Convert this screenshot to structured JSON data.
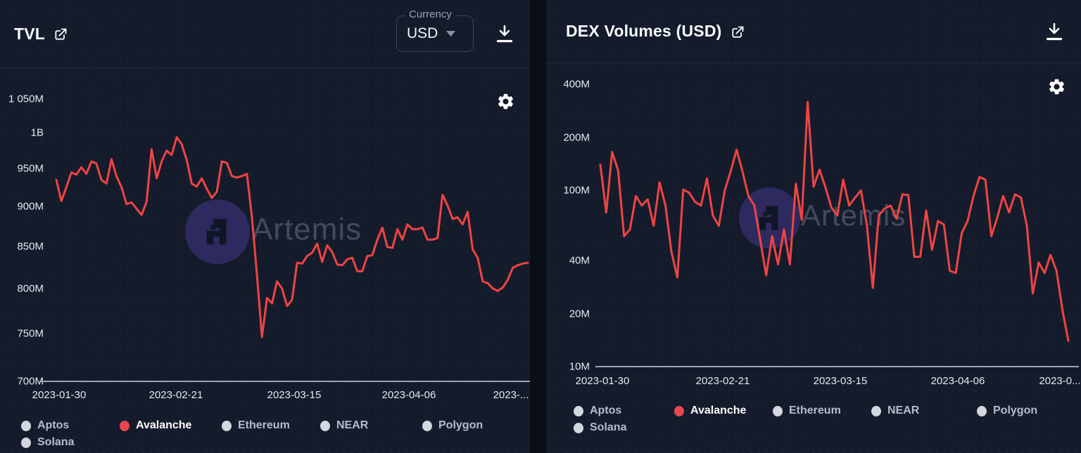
{
  "currency": {
    "label": "Currency",
    "value": "USD"
  },
  "watermark": {
    "text": "Artemis"
  },
  "icons": {
    "external_link": "external-link-icon",
    "download": "download-icon",
    "settings": "gear-icon",
    "dropdown_caret": "chevron-down-icon"
  },
  "colors": {
    "page_bg": "#0a0e17",
    "panel_bg": "#141b2a",
    "line_red": "#ef4444",
    "legend_inactive_dot": "#d3d7de",
    "legend_active_dot": "#e8454e",
    "axis_line": "#9aa4b6",
    "tick_text": "#e4e9f1"
  },
  "legend": {
    "items": [
      {
        "label": "Aptos",
        "selected": false
      },
      {
        "label": "Avalanche",
        "selected": true
      },
      {
        "label": "Ethereum",
        "selected": false
      },
      {
        "label": "NEAR",
        "selected": false
      },
      {
        "label": "Polygon",
        "selected": false
      },
      {
        "label": "Solana",
        "selected": false
      }
    ]
  },
  "chart_data": [
    {
      "type": "line",
      "title": "TVL",
      "unit": "USD millions",
      "yscale": "log",
      "ylim": [
        700,
        1050
      ],
      "grid": false,
      "legend_position": "bottom",
      "x_range": [
        "2023-01-30",
        "2023-04-28"
      ],
      "y_ticks": [
        {
          "label": "1 050M",
          "value": 1050
        },
        {
          "label": "1B",
          "value": 1000
        },
        {
          "label": "950M",
          "value": 950
        },
        {
          "label": "900M",
          "value": 900
        },
        {
          "label": "850M",
          "value": 850
        },
        {
          "label": "800M",
          "value": 800
        },
        {
          "label": "750M",
          "value": 750
        },
        {
          "label": "700M",
          "value": 700
        }
      ],
      "x_ticks": [
        "2023-01-30",
        "2023-02-21",
        "2023-03-15",
        "2023-04-06",
        "2023-..."
      ],
      "series": [
        {
          "name": "Avalanche",
          "color": "#ef4444",
          "values": [
            935,
            907,
            925,
            945,
            942,
            952,
            943,
            960,
            957,
            935,
            930,
            963,
            940,
            925,
            903,
            905,
            897,
            889,
            906,
            977,
            937,
            960,
            975,
            969,
            994,
            984,
            962,
            930,
            926,
            937,
            923,
            911,
            919,
            960,
            958,
            940,
            938,
            940,
            943,
            886,
            816,
            746,
            789,
            783,
            808,
            800,
            780,
            787,
            830,
            829,
            838,
            842,
            853,
            831,
            851,
            843,
            828,
            827,
            834,
            836,
            820,
            820,
            838,
            839,
            858,
            873,
            849,
            848,
            871,
            858,
            877,
            871,
            871,
            873,
            858,
            858,
            860,
            915,
            901,
            884,
            886,
            877,
            893,
            846,
            836,
            808,
            806,
            800,
            797,
            801,
            810,
            824,
            827,
            829,
            830
          ]
        }
      ]
    },
    {
      "type": "line",
      "title": "DEX Volumes (USD)",
      "unit": "USD millions",
      "yscale": "log",
      "ylim": [
        10,
        400
      ],
      "grid": false,
      "legend_position": "bottom",
      "x_range": [
        "2023-01-30",
        "2023-04-28"
      ],
      "y_ticks": [
        {
          "label": "400M",
          "value": 400
        },
        {
          "label": "200M",
          "value": 200
        },
        {
          "label": "100M",
          "value": 100
        },
        {
          "label": "40M",
          "value": 40
        },
        {
          "label": "20M",
          "value": 20
        },
        {
          "label": "10M",
          "value": 10
        }
      ],
      "x_ticks": [
        "2023-01-30",
        "2023-02-21",
        "2023-03-15",
        "2023-04-06",
        "2023-0..."
      ],
      "series": [
        {
          "name": "Avalanche",
          "color": "#ef4444",
          "values": [
            140,
            75,
            165,
            130,
            55,
            60,
            93,
            82,
            89,
            63,
            111,
            82,
            45,
            32,
            101,
            97,
            86,
            82,
            117,
            72,
            63,
            100,
            128,
            170,
            128,
            93,
            82,
            52,
            33,
            55,
            38,
            60,
            38,
            109,
            68,
            318,
            105,
            131,
            104,
            80,
            72,
            115,
            82,
            91,
            100,
            63,
            28,
            72,
            79,
            82,
            69,
            95,
            94,
            42,
            42,
            77,
            46,
            67,
            64,
            35,
            34,
            57,
            67,
            93,
            119,
            115,
            55,
            70,
            93,
            75,
            95,
            91,
            63,
            26,
            39,
            34,
            43,
            35,
            21,
            14
          ]
        }
      ]
    }
  ]
}
